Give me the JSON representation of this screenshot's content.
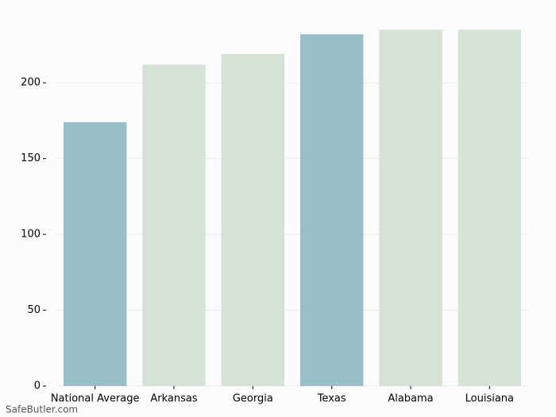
{
  "chart_data": {
    "type": "bar",
    "categories": [
      "National Average",
      "Arkansas",
      "Georgia",
      "Texas",
      "Alabama",
      "Louisiana"
    ],
    "values": [
      174,
      212,
      219,
      232,
      235,
      235
    ],
    "colors": [
      "#99bec7",
      "#d5e3d7",
      "#d5e3d7",
      "#99bec7",
      "#d5e3d7",
      "#d5e3d7"
    ],
    "ylim": [
      0,
      246.75
    ],
    "yticks": [
      0,
      50,
      100,
      150,
      200
    ],
    "grid": true,
    "watermark": "SafeButler.com"
  }
}
